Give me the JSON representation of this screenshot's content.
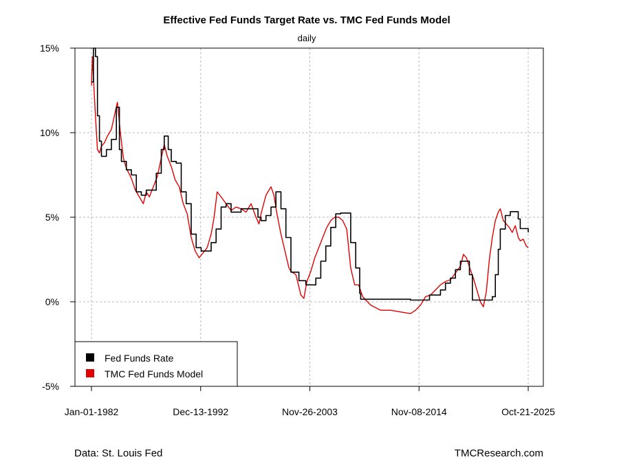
{
  "chart_data": {
    "type": "line",
    "title": "Effective Fed Funds Target Rate vs. TMC Fed Funds Model",
    "subtitle": "daily",
    "x_tick_labels": [
      "Jan-01-1982",
      "Dec-13-1992",
      "Nov-26-2003",
      "Nov-08-2014",
      "Oct-21-2025"
    ],
    "x_ticks": [
      1982.0,
      1992.95,
      2003.9,
      2014.85,
      2025.8
    ],
    "xlim": [
      1982.0,
      2025.8
    ],
    "y_tick_labels": [
      "-5%",
      "0%",
      "5%",
      "10%",
      "15%"
    ],
    "y_ticks": [
      -5,
      0,
      5,
      10,
      15
    ],
    "ylim": [
      -5,
      15
    ],
    "grid": true,
    "legend_position": "bottom-left",
    "series": [
      {
        "name": "Fed Funds Rate",
        "color": "#000000",
        "x": [
          1982.0,
          1982.2,
          1982.4,
          1982.6,
          1982.8,
          1983.0,
          1983.5,
          1984.0,
          1984.5,
          1984.8,
          1985.0,
          1985.5,
          1986.0,
          1986.5,
          1987.0,
          1987.5,
          1988.0,
          1988.5,
          1989.0,
          1989.3,
          1989.7,
          1990.0,
          1990.5,
          1991.0,
          1991.5,
          1992.0,
          1992.5,
          1993.0,
          1993.5,
          1994.0,
          1994.5,
          1995.0,
          1995.5,
          1996.0,
          1997.0,
          1998.0,
          1998.7,
          1999.0,
          1999.5,
          2000.0,
          2000.5,
          2001.0,
          2001.5,
          2002.0,
          2002.8,
          2003.5,
          2004.0,
          2004.5,
          2005.0,
          2005.5,
          2006.0,
          2006.5,
          2007.0,
          2007.5,
          2008.0,
          2008.5,
          2008.9,
          2009.0,
          2010.0,
          2012.0,
          2014.0,
          2015.9,
          2016.5,
          2017.0,
          2017.5,
          2018.0,
          2018.5,
          2019.0,
          2019.5,
          2019.9,
          2020.2,
          2020.5,
          2021.0,
          2021.5,
          2022.0,
          2022.2,
          2022.5,
          2022.8,
          2023.0,
          2023.5,
          2024.0,
          2024.6,
          2024.8,
          2025.0,
          2025.8
        ],
        "values": [
          13.0,
          15.0,
          14.5,
          11.0,
          9.5,
          8.6,
          9.0,
          9.6,
          11.5,
          9.0,
          8.3,
          7.8,
          7.5,
          6.5,
          6.3,
          6.6,
          6.6,
          7.6,
          9.0,
          9.8,
          9.0,
          8.3,
          8.2,
          6.5,
          5.8,
          4.0,
          3.2,
          3.0,
          3.0,
          3.5,
          4.3,
          5.6,
          5.8,
          5.3,
          5.5,
          5.5,
          5.0,
          4.8,
          5.1,
          5.6,
          6.5,
          5.5,
          3.8,
          1.75,
          1.25,
          1.0,
          1.0,
          1.4,
          2.4,
          3.3,
          4.4,
          5.2,
          5.25,
          5.25,
          3.5,
          2.0,
          0.5,
          0.15,
          0.15,
          0.15,
          0.1,
          0.4,
          0.4,
          0.7,
          1.1,
          1.4,
          1.9,
          2.4,
          2.4,
          1.6,
          0.1,
          0.1,
          0.1,
          0.1,
          0.1,
          0.3,
          1.6,
          3.1,
          4.3,
          5.1,
          5.33,
          5.33,
          4.9,
          4.33,
          4.1
        ]
      },
      {
        "name": "TMC Fed Funds Model",
        "color": "#e00000",
        "x": [
          1982.0,
          1982.1,
          1982.2,
          1982.35,
          1982.5,
          1982.6,
          1982.8,
          1983.0,
          1983.3,
          1983.6,
          1984.0,
          1984.3,
          1984.6,
          1984.9,
          1985.2,
          1985.5,
          1986.0,
          1986.4,
          1986.8,
          1987.2,
          1987.5,
          1987.8,
          1988.2,
          1988.6,
          1989.0,
          1989.3,
          1989.6,
          1990.0,
          1990.4,
          1990.8,
          1991.2,
          1991.6,
          1992.0,
          1992.4,
          1992.8,
          1993.2,
          1993.6,
          1994.0,
          1994.3,
          1994.6,
          1995.0,
          1995.5,
          1996.0,
          1996.5,
          1997.0,
          1997.5,
          1998.0,
          1998.5,
          1998.8,
          1999.0,
          1999.5,
          2000.0,
          2000.3,
          2000.6,
          2001.0,
          2001.4,
          2001.8,
          2002.0,
          2002.5,
          2003.0,
          2003.3,
          2003.6,
          2004.0,
          2004.4,
          2004.8,
          2005.2,
          2005.6,
          2006.0,
          2006.4,
          2006.8,
          2007.2,
          2007.6,
          2008.0,
          2008.4,
          2008.8,
          2009.2,
          2010.0,
          2011.0,
          2012.0,
          2013.0,
          2014.0,
          2014.5,
          2015.0,
          2015.5,
          2016.0,
          2016.5,
          2017.0,
          2017.5,
          2018.0,
          2018.5,
          2019.0,
          2019.3,
          2019.6,
          2020.0,
          2020.3,
          2020.6,
          2021.0,
          2021.3,
          2021.6,
          2021.9,
          2022.2,
          2022.5,
          2022.8,
          2023.0,
          2023.3,
          2023.6,
          2023.9,
          2024.2,
          2024.5,
          2024.8,
          2025.0,
          2025.3,
          2025.6,
          2025.8
        ],
        "values": [
          12.8,
          14.5,
          13.2,
          11.5,
          10.0,
          9.0,
          8.8,
          9.2,
          9.4,
          9.8,
          10.2,
          11.0,
          11.8,
          10.0,
          8.5,
          7.9,
          7.3,
          6.6,
          6.2,
          5.8,
          6.5,
          6.2,
          6.8,
          7.4,
          8.5,
          9.3,
          8.6,
          8.0,
          7.2,
          6.8,
          5.8,
          5.2,
          3.8,
          3.0,
          2.6,
          2.9,
          3.2,
          4.0,
          5.0,
          6.5,
          6.2,
          5.8,
          5.4,
          5.6,
          5.5,
          5.3,
          5.8,
          5.0,
          4.6,
          5.2,
          6.3,
          6.8,
          6.3,
          5.2,
          4.0,
          3.0,
          2.0,
          1.8,
          1.6,
          0.4,
          0.2,
          1.2,
          1.8,
          2.6,
          3.2,
          3.8,
          4.4,
          4.8,
          5.0,
          5.0,
          4.8,
          4.3,
          2.0,
          1.0,
          1.0,
          0.3,
          -0.2,
          -0.5,
          -0.5,
          -0.6,
          -0.7,
          -0.5,
          -0.2,
          0.3,
          0.4,
          0.7,
          1.0,
          1.2,
          1.3,
          1.7,
          2.1,
          2.8,
          2.6,
          1.9,
          1.4,
          0.8,
          0.0,
          -0.3,
          0.6,
          2.5,
          3.8,
          4.8,
          5.3,
          5.5,
          4.8,
          4.6,
          4.4,
          4.1,
          4.5,
          3.8,
          3.6,
          3.7,
          3.3,
          3.2
        ]
      }
    ]
  },
  "footer": {
    "source": "Data: St. Louis Fed",
    "brand": "TMCResearch.com"
  }
}
